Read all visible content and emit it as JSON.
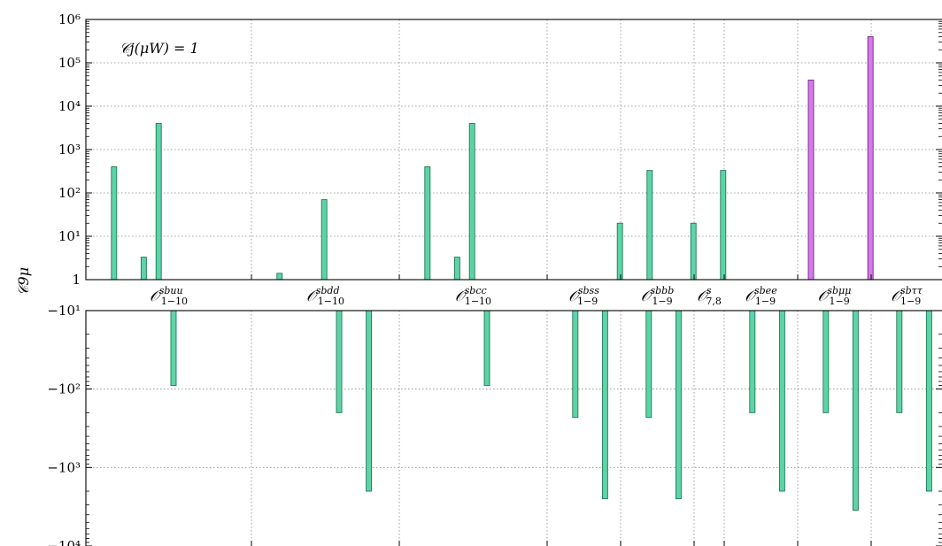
{
  "chart_data": {
    "type": "bar",
    "ylabel": "𝒞9μ",
    "annotation": "𝒞j(μW) = 1",
    "y_scale": "symlog",
    "upper_axis": {
      "range": [
        1,
        1000000
      ],
      "tick_values": [
        1,
        10,
        100,
        1000,
        10000,
        100000,
        1000000
      ],
      "tick_labels": [
        "1",
        "10¹",
        "10²",
        "10³",
        "10⁴",
        "10⁵",
        "10⁶"
      ]
    },
    "lower_axis": {
      "range": [
        -10,
        -10000
      ],
      "tick_values": [
        -10,
        -100,
        -1000,
        -10000
      ],
      "tick_labels": [
        "−10¹",
        "−10²",
        "−10³",
        "−10⁴"
      ]
    },
    "grid": true,
    "colors": {
      "normal": "#5fd3a8",
      "highlight": "#d37be6",
      "stroke": "#1c7a55",
      "highlight_stroke": "#7a1f8c"
    },
    "groups": [
      {
        "base": "𝒪",
        "sup": "sbuu",
        "sub": "1−10",
        "n_bars": 10,
        "values": [
          0,
          400,
          0,
          3.3,
          4000,
          -90,
          0,
          0,
          0,
          0
        ]
      },
      {
        "base": "𝒪",
        "sup": "sbdd",
        "sub": "1−10",
        "n_bars": 10,
        "values": [
          0,
          1.4,
          0,
          0,
          70,
          -200,
          0,
          -2000,
          0,
          0
        ]
      },
      {
        "base": "𝒪",
        "sup": "sbcc",
        "sub": "1−10",
        "n_bars": 10,
        "values": [
          0,
          400,
          0,
          3.3,
          4000,
          -90,
          0,
          0,
          0,
          0
        ]
      },
      {
        "base": "𝒪",
        "sup": "sbss",
        "sub": "1−9",
        "n_bars": 9,
        "values": [
          0,
          -230,
          0,
          -2500,
          20,
          0,
          330,
          0,
          0
        ]
      },
      {
        "base": "𝒪",
        "sup": "sbbb",
        "sub": "1−9",
        "n_bars": 9,
        "values": [
          0,
          -230,
          0,
          -2500,
          20,
          0,
          330,
          0,
          0
        ]
      },
      {
        "base": "𝒪",
        "sup": "s",
        "sub": "7,8",
        "n_bars": 2,
        "values": [
          0,
          0
        ]
      },
      {
        "base": "𝒪",
        "sup": "sbee",
        "sub": "1−9",
        "n_bars": 9,
        "values": [
          0,
          -200,
          0,
          -2000,
          0,
          0,
          0,
          0,
          0
        ]
      },
      {
        "base": "𝒪",
        "sup": "sbμμ",
        "sub": "1−9",
        "n_bars": 9,
        "highlight_positive": true,
        "values": [
          40000,
          -200,
          0,
          -3500,
          400000,
          0,
          0,
          0,
          0
        ]
      },
      {
        "base": "𝒪",
        "sup": "sbττ",
        "sub": "1−9",
        "n_bars": 9,
        "values": [
          0,
          -200,
          0,
          -2000,
          0,
          0,
          0,
          0,
          0
        ]
      }
    ]
  }
}
